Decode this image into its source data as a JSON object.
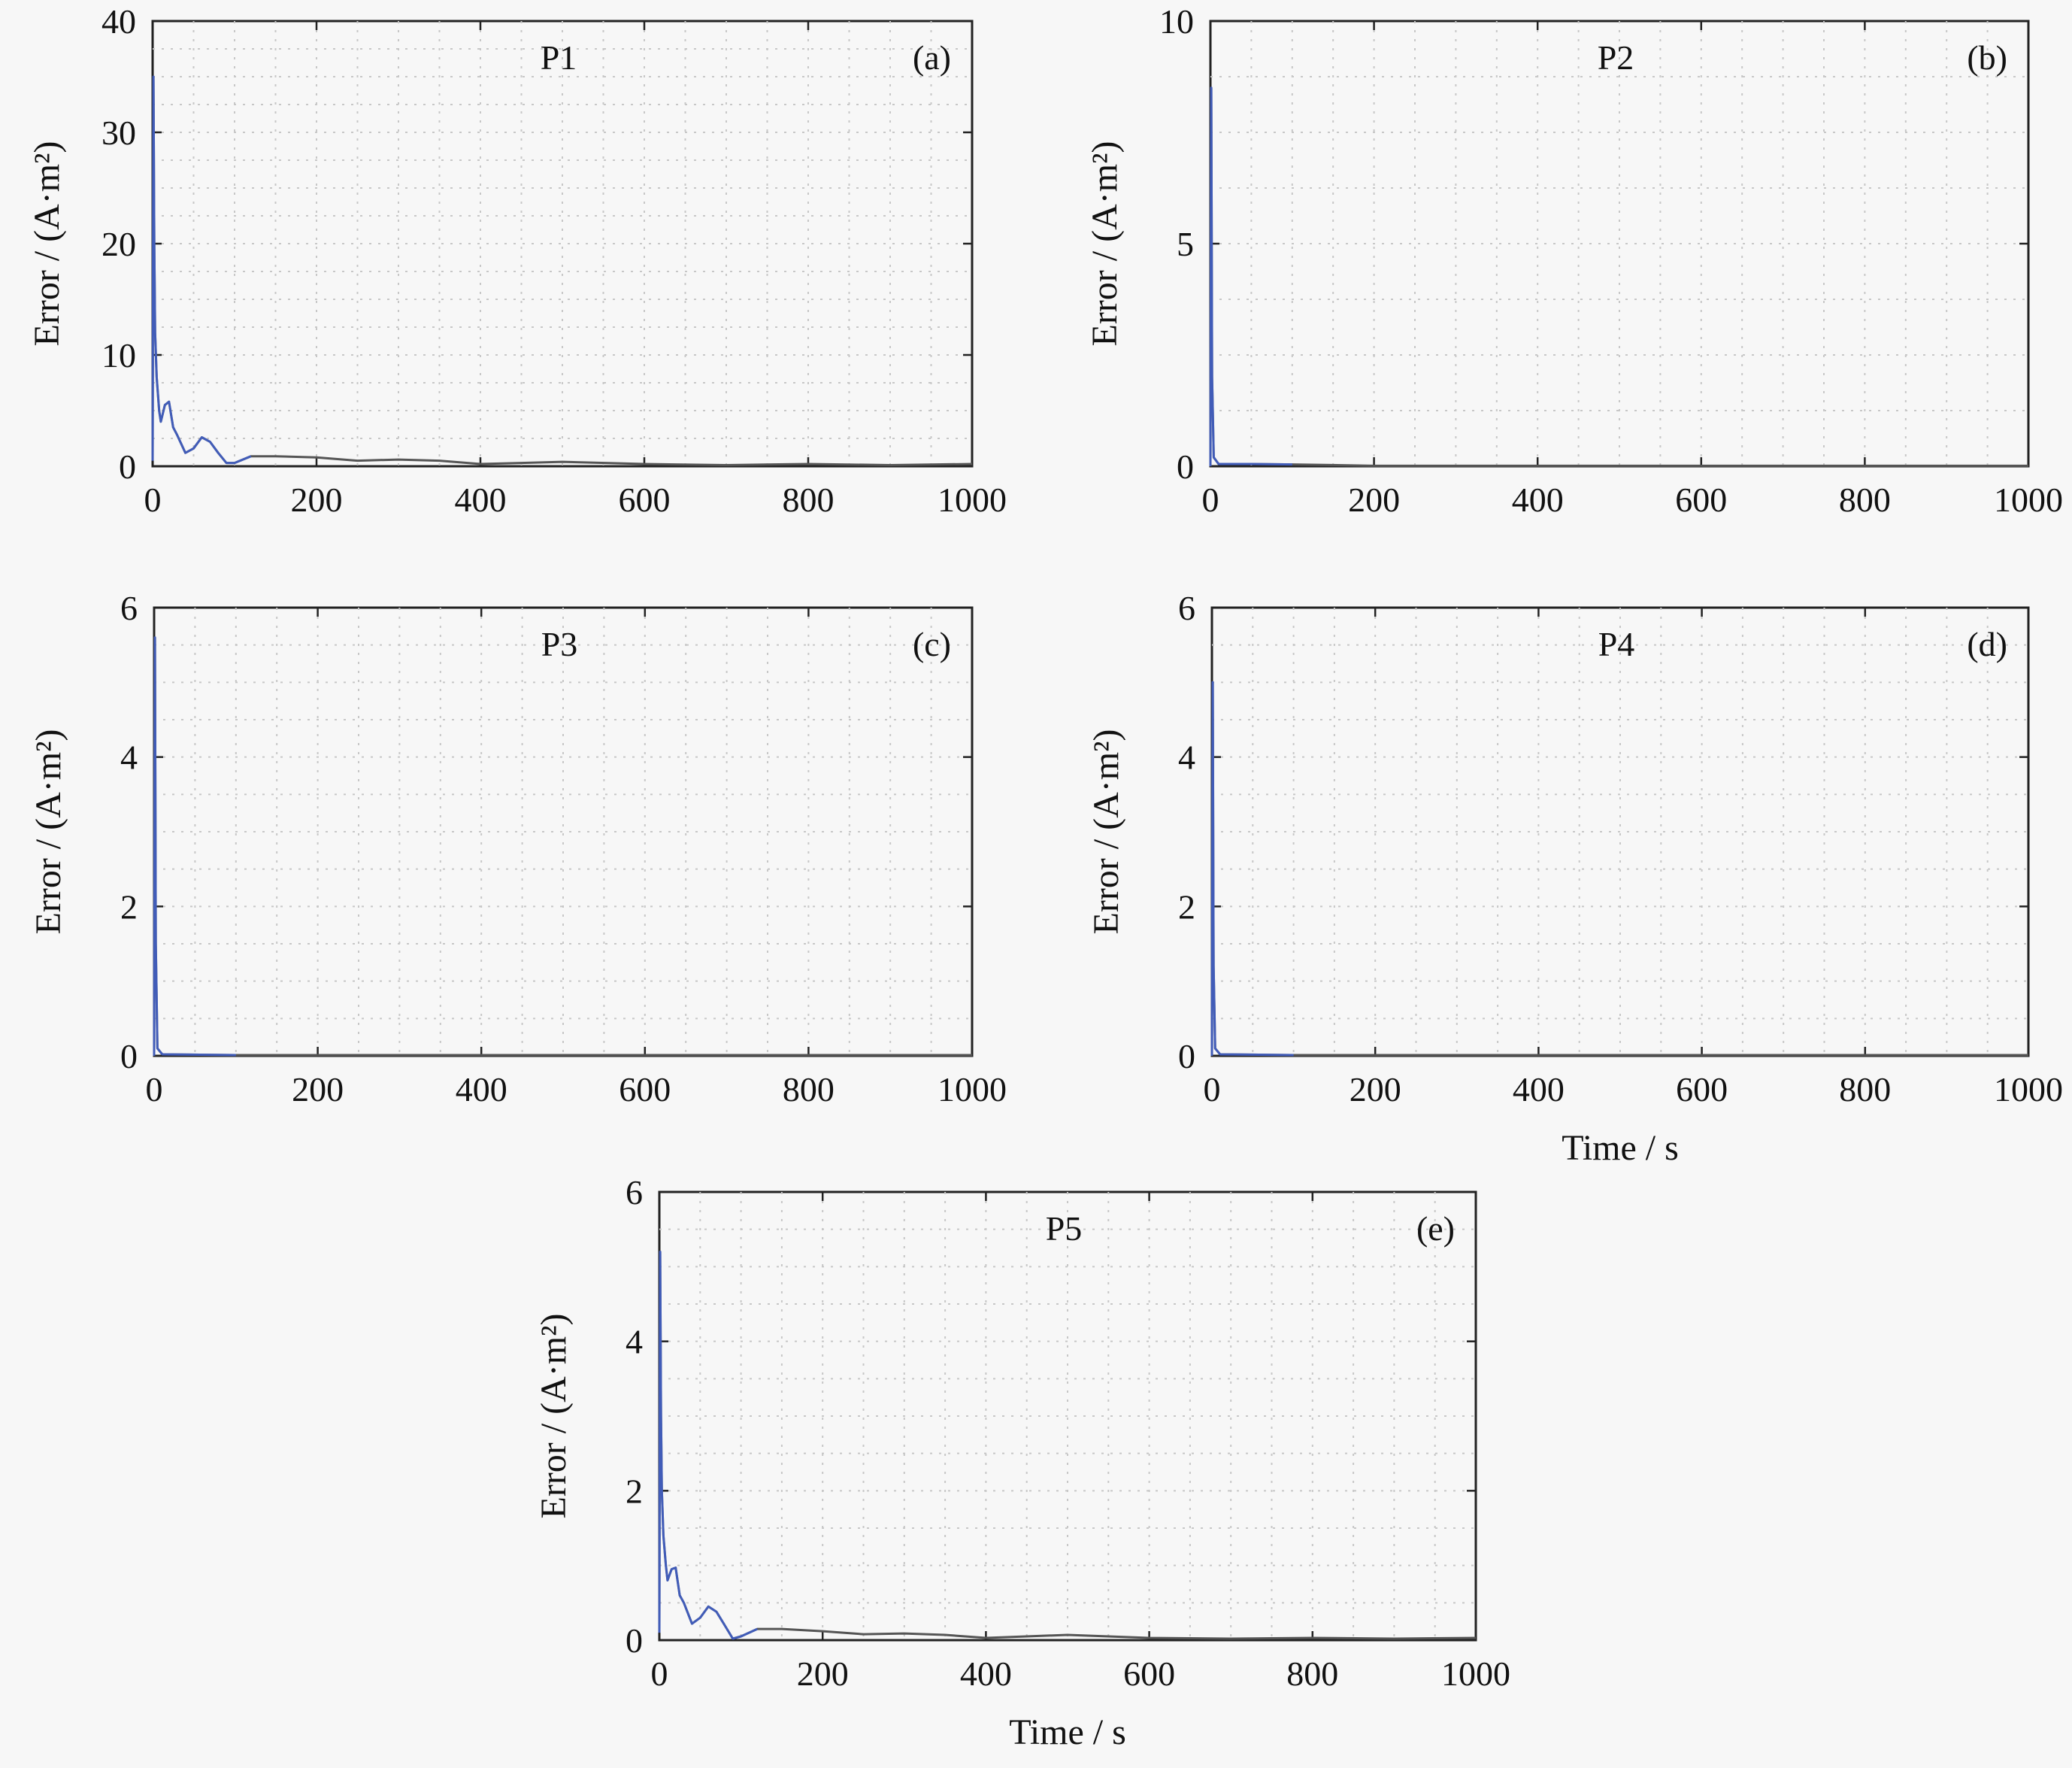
{
  "chart_data": [
    {
      "type": "line",
      "title": "P1",
      "panel": "(a)",
      "xlabel": "",
      "ylabel": "Error / (A·m²)",
      "xlim": [
        0,
        1000
      ],
      "ylim": [
        0,
        40
      ],
      "xticks": [
        0,
        200,
        400,
        600,
        800,
        1000
      ],
      "yticks": [
        0,
        10,
        20,
        30,
        40
      ],
      "grid": true,
      "series": [
        {
          "color": "#555555",
          "early_color": "#3b5fd9",
          "x": [
            0,
            1,
            2,
            3,
            5,
            8,
            10,
            15,
            20,
            25,
            30,
            40,
            50,
            60,
            70,
            80,
            90,
            100,
            120,
            150,
            200,
            250,
            300,
            350,
            400,
            450,
            500,
            600,
            700,
            800,
            900,
            1000
          ],
          "y": [
            0.5,
            35,
            20,
            12,
            8,
            5,
            4,
            5.5,
            5.8,
            3.5,
            2.8,
            1.2,
            1.6,
            2.6,
            2.2,
            1.2,
            0.3,
            0.3,
            0.9,
            0.9,
            0.8,
            0.5,
            0.6,
            0.5,
            0.2,
            0.3,
            0.4,
            0.2,
            0.1,
            0.2,
            0.1,
            0.2
          ]
        }
      ]
    },
    {
      "type": "line",
      "title": "P2",
      "panel": "(b)",
      "xlabel": "",
      "ylabel": "Error / (A·m²)",
      "xlim": [
        0,
        1000
      ],
      "ylim": [
        0,
        10
      ],
      "xticks": [
        0,
        200,
        400,
        600,
        800,
        1000
      ],
      "yticks": [
        0,
        5,
        10
      ],
      "grid": true,
      "series": [
        {
          "color": "#555555",
          "early_color": "#3b5fd9",
          "x": [
            0,
            1,
            2,
            4,
            10,
            50,
            100,
            140,
            200,
            1000
          ],
          "y": [
            0,
            8.5,
            2,
            0.2,
            0.05,
            0.05,
            0.04,
            0.03,
            0.01,
            0.01
          ]
        }
      ]
    },
    {
      "type": "line",
      "title": "P3",
      "panel": "(c)",
      "xlabel": "",
      "ylabel": "Error / (A·m²)",
      "xlim": [
        0,
        1000
      ],
      "ylim": [
        0,
        6
      ],
      "xticks": [
        0,
        200,
        400,
        600,
        800,
        1000
      ],
      "yticks": [
        0,
        2,
        4,
        6
      ],
      "grid": true,
      "series": [
        {
          "color": "#555555",
          "early_color": "#3b5fd9",
          "x": [
            0,
            1,
            2,
            4,
            10,
            100,
            1000
          ],
          "y": [
            0,
            5.6,
            1.5,
            0.1,
            0.02,
            0.01,
            0.01
          ]
        }
      ]
    },
    {
      "type": "line",
      "title": "P4",
      "panel": "(d)",
      "xlabel": "Time / s",
      "ylabel": "Error / (A·m²)",
      "xlim": [
        0,
        1000
      ],
      "ylim": [
        0,
        6
      ],
      "xticks": [
        0,
        200,
        400,
        600,
        800,
        1000
      ],
      "yticks": [
        0,
        2,
        4,
        6
      ],
      "grid": true,
      "series": [
        {
          "color": "#555555",
          "early_color": "#3b5fd9",
          "x": [
            0,
            1,
            2,
            4,
            10,
            100,
            1000
          ],
          "y": [
            0,
            5.0,
            1.2,
            0.1,
            0.02,
            0.01,
            0.01
          ]
        }
      ]
    },
    {
      "type": "line",
      "title": "P5",
      "panel": "(e)",
      "xlabel": "Time / s",
      "ylabel": "Error / (A·m²)",
      "xlim": [
        0,
        1000
      ],
      "ylim": [
        0,
        6
      ],
      "xticks": [
        0,
        200,
        400,
        600,
        800,
        1000
      ],
      "yticks": [
        0,
        2,
        4,
        6
      ],
      "grid": true,
      "series": [
        {
          "color": "#555555",
          "early_color": "#3b5fd9",
          "x": [
            0,
            1,
            2,
            3,
            5,
            8,
            10,
            15,
            20,
            25,
            30,
            40,
            50,
            60,
            70,
            80,
            90,
            100,
            120,
            150,
            200,
            250,
            300,
            350,
            400,
            450,
            500,
            600,
            700,
            800,
            900,
            1000
          ],
          "y": [
            0.1,
            5.2,
            3.0,
            2.0,
            1.4,
            1.0,
            0.8,
            0.95,
            0.97,
            0.6,
            0.5,
            0.22,
            0.3,
            0.45,
            0.38,
            0.2,
            0.02,
            0.05,
            0.15,
            0.15,
            0.12,
            0.08,
            0.09,
            0.07,
            0.03,
            0.05,
            0.07,
            0.03,
            0.02,
            0.03,
            0.02,
            0.03
          ]
        }
      ]
    }
  ]
}
